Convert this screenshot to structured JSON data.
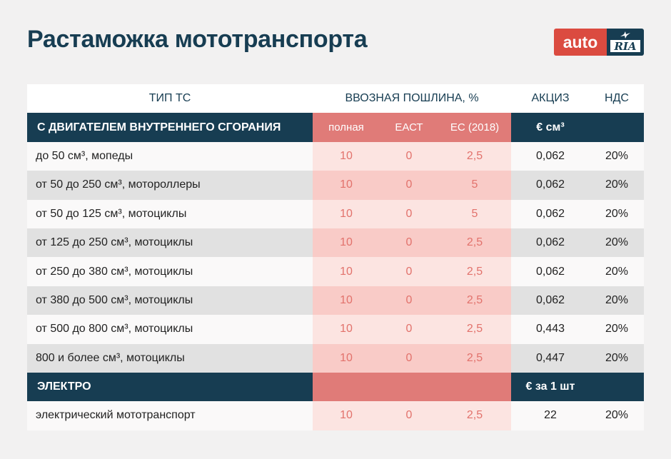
{
  "title": "Растаможка мототранспорта",
  "logo": {
    "left": "auto",
    "right": "RIA"
  },
  "header": {
    "type": "ТИП ТС",
    "duty": "ВВОЗНАЯ ПОШЛИНА, %",
    "excise": "АКЦИЗ",
    "vat": "НДС"
  },
  "section_ice": {
    "label": "С ДВИГАТЕЛЕМ ВНУТРЕННЕГО СГОРАНИЯ",
    "full": "полная",
    "eact": "ЕАСТ",
    "ec": "ЕС (2018)",
    "excise_unit": "€ см³"
  },
  "rows_ice": [
    {
      "type": "до 50 см³, мопеды",
      "full": "10",
      "eact": "0",
      "ec": "2,5",
      "excise": "0,062",
      "vat": "20%"
    },
    {
      "type": "от 50 до 250 см³, мотороллеры",
      "full": "10",
      "eact": "0",
      "ec": "5",
      "excise": "0,062",
      "vat": "20%"
    },
    {
      "type": "от 50 до 125 см³, мотоциклы",
      "full": "10",
      "eact": "0",
      "ec": "5",
      "excise": "0,062",
      "vat": "20%"
    },
    {
      "type": "от 125 до 250 см³, мотоциклы",
      "full": "10",
      "eact": "0",
      "ec": "2,5",
      "excise": "0,062",
      "vat": "20%"
    },
    {
      "type": "от 250 до 380 см³, мотоциклы",
      "full": "10",
      "eact": "0",
      "ec": "2,5",
      "excise": "0,062",
      "vat": "20%"
    },
    {
      "type": "от 380 до 500 см³, мотоциклы",
      "full": "10",
      "eact": "0",
      "ec": "2,5",
      "excise": "0,062",
      "vat": "20%"
    },
    {
      "type": "от 500 до 800 см³, мотоциклы",
      "full": "10",
      "eact": "0",
      "ec": "2,5",
      "excise": "0,443",
      "vat": "20%"
    },
    {
      "type": "800 и более см³, мотоциклы",
      "full": "10",
      "eact": "0",
      "ec": "2,5",
      "excise": "0,447",
      "vat": "20%"
    }
  ],
  "section_electro": {
    "label": "ЭЛЕКТРО",
    "excise_unit": "€ за 1 шт"
  },
  "rows_electro": [
    {
      "type": "электрический мототранспорт",
      "full": "10",
      "eact": "0",
      "ec": "2,5",
      "excise": "22",
      "vat": "20%"
    }
  ]
}
